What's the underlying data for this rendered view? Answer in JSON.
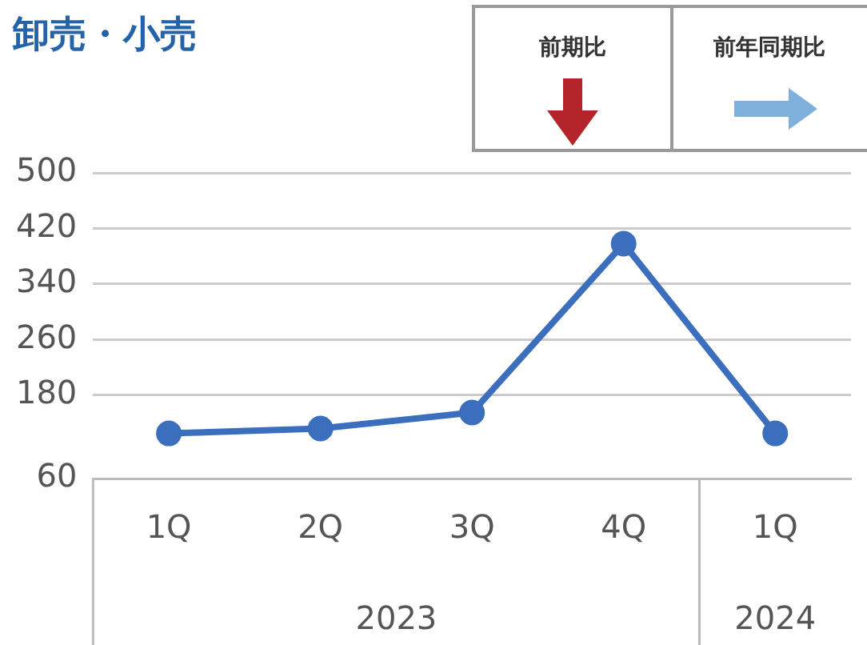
{
  "chart_data": {
    "type": "line",
    "title": "卸売・小売",
    "categories": [
      "1Q",
      "2Q",
      "3Q",
      "4Q",
      "1Q"
    ],
    "series": [
      {
        "color": "#3b6fbe",
        "values": [
          125,
          132,
          155,
          398,
          125
        ]
      }
    ],
    "ylim": [
      60,
      500
    ],
    "yticks": [
      60,
      180,
      260,
      340,
      420,
      500
    ],
    "annotations": [
      "2023",
      "2024",
      "前期比",
      "前年同期比"
    ],
    "grid": "y",
    "legend": false,
    "marker": "circle",
    "line_style": "solid"
  }
}
